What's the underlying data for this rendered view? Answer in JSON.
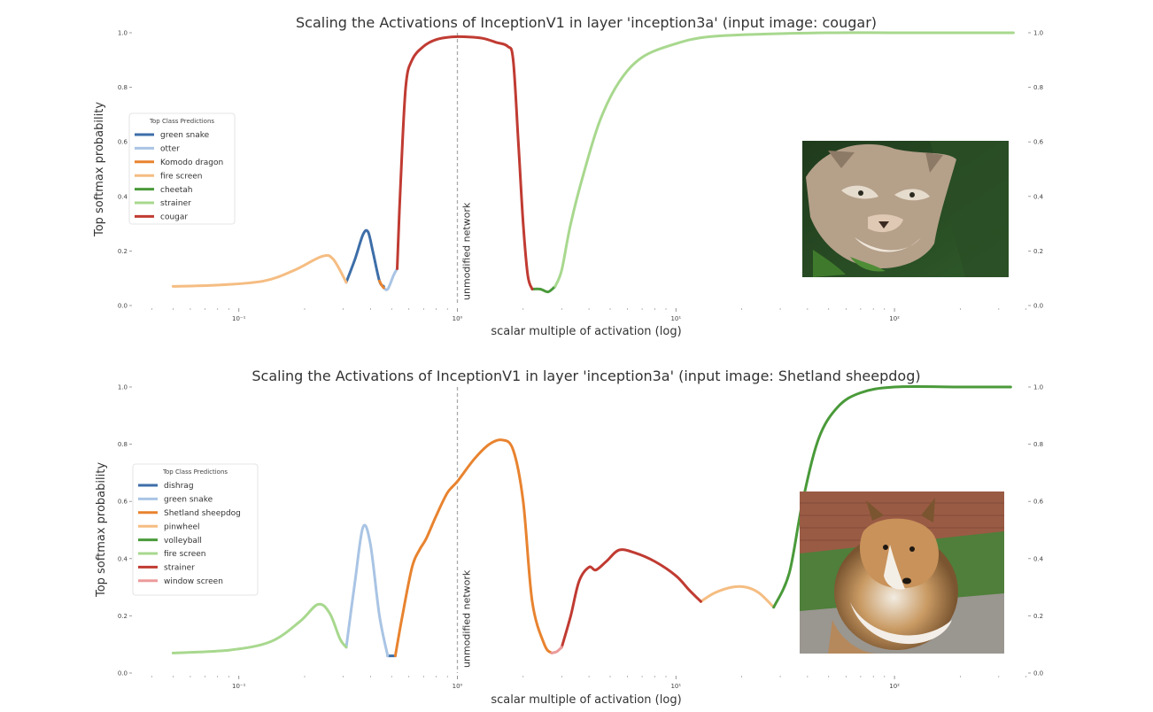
{
  "chart_data": [
    {
      "type": "line",
      "title": "Scaling the Activations of InceptionV1 in layer 'inception3a' (input image: cougar)",
      "xlabel": "scalar multiple of activation (log)",
      "ylabel": "Top softmax probability",
      "xscale": "log",
      "xlim": [
        0.04,
        400
      ],
      "ylim": [
        0,
        1
      ],
      "xticks": [
        0.1,
        1,
        10,
        100
      ],
      "xtick_labels": [
        "10⁻¹",
        "10⁰",
        "10¹",
        "10²"
      ],
      "yticks": [
        0,
        0.2,
        0.4,
        0.6,
        0.8,
        1.0
      ],
      "ytick_labels": [
        "0.0",
        "0.2",
        "0.4",
        "0.6",
        "0.8",
        "1.0"
      ],
      "right_axis_ticks": true,
      "grid": false,
      "reference_line": {
        "x": 1,
        "label": "unmodified network"
      },
      "legend": {
        "title": "Top Class Predictions",
        "position": "center-left"
      },
      "image": {
        "subject": "cougar",
        "position": "right"
      },
      "series": [
        {
          "name": "green snake",
          "color": "#3d6ea8",
          "points": [
            [
              0.31,
              0.085
            ],
            [
              0.34,
              0.17
            ],
            [
              0.37,
              0.26
            ],
            [
              0.39,
              0.27
            ],
            [
              0.41,
              0.2
            ],
            [
              0.44,
              0.09
            ],
            [
              0.46,
              0.07
            ]
          ]
        },
        {
          "name": "otter",
          "color": "#a9c4e4",
          "points": [
            [
              0.46,
              0.065
            ],
            [
              0.48,
              0.06
            ],
            [
              0.51,
              0.11
            ],
            [
              0.53,
              0.135
            ]
          ]
        },
        {
          "name": "Komodo dragon",
          "color": "#e8832f",
          "points": [
            [
              0.44,
              0.09
            ],
            [
              0.45,
              0.075
            ],
            [
              0.46,
              0.065
            ]
          ]
        },
        {
          "name": "fire screen",
          "color": "#f5bd82",
          "points": [
            [
              0.05,
              0.07
            ],
            [
              0.08,
              0.075
            ],
            [
              0.13,
              0.09
            ],
            [
              0.18,
              0.13
            ],
            [
              0.24,
              0.18
            ],
            [
              0.27,
              0.17
            ],
            [
              0.31,
              0.085
            ]
          ]
        },
        {
          "name": "cheetah",
          "color": "#4a9a3a",
          "points": [
            [
              2.2,
              0.06
            ],
            [
              2.4,
              0.06
            ],
            [
              2.6,
              0.05
            ],
            [
              2.8,
              0.07
            ]
          ]
        },
        {
          "name": "strainer",
          "color": "#a8d88e",
          "points": [
            [
              2.8,
              0.07
            ],
            [
              3.0,
              0.13
            ],
            [
              3.3,
              0.3
            ],
            [
              3.8,
              0.49
            ],
            [
              4.5,
              0.68
            ],
            [
              5.5,
              0.82
            ],
            [
              7.0,
              0.91
            ],
            [
              10,
              0.96
            ],
            [
              14,
              0.985
            ],
            [
              25,
              0.995
            ],
            [
              50,
              1.0
            ],
            [
              100,
              1.0
            ],
            [
              200,
              1.0
            ],
            [
              350,
              1.0
            ]
          ]
        },
        {
          "name": "cougar",
          "color": "#c03b32",
          "points": [
            [
              0.53,
              0.135
            ],
            [
              0.55,
              0.45
            ],
            [
              0.58,
              0.8
            ],
            [
              0.62,
              0.9
            ],
            [
              0.7,
              0.95
            ],
            [
              0.8,
              0.975
            ],
            [
              0.95,
              0.985
            ],
            [
              1.1,
              0.985
            ],
            [
              1.3,
              0.98
            ],
            [
              1.5,
              0.965
            ],
            [
              1.7,
              0.95
            ],
            [
              1.8,
              0.9
            ],
            [
              1.9,
              0.6
            ],
            [
              2.0,
              0.3
            ],
            [
              2.1,
              0.11
            ],
            [
              2.2,
              0.06
            ]
          ]
        }
      ]
    },
    {
      "type": "line",
      "title": "Scaling the Activations of InceptionV1 in layer 'inception3a' (input image: Shetland sheepdog)",
      "xlabel": "scalar multiple of activation (log)",
      "ylabel": "Top softmax probability",
      "xscale": "log",
      "xlim": [
        0.04,
        400
      ],
      "ylim": [
        0,
        1
      ],
      "xticks": [
        0.1,
        1,
        10,
        100
      ],
      "xtick_labels": [
        "10⁻¹",
        "10⁰",
        "10¹",
        "10²"
      ],
      "yticks": [
        0,
        0.2,
        0.4,
        0.6,
        0.8,
        1.0
      ],
      "ytick_labels": [
        "0.0",
        "0.2",
        "0.4",
        "0.6",
        "0.8",
        "1.0"
      ],
      "right_axis_ticks": true,
      "grid": false,
      "reference_line": {
        "x": 1,
        "label": "unmodified network"
      },
      "legend": {
        "title": "Top Class Predictions",
        "position": "center-left"
      },
      "image": {
        "subject": "Shetland sheepdog",
        "position": "right"
      },
      "series": [
        {
          "name": "dishrag",
          "color": "#3d6ea8",
          "points": [
            [
              0.48,
              0.06
            ],
            [
              0.5,
              0.06
            ],
            [
              0.52,
              0.06
            ]
          ]
        },
        {
          "name": "green snake",
          "color": "#a9c4e4",
          "points": [
            [
              0.31,
              0.09
            ],
            [
              0.34,
              0.32
            ],
            [
              0.37,
              0.51
            ],
            [
              0.4,
              0.45
            ],
            [
              0.44,
              0.2
            ],
            [
              0.48,
              0.06
            ]
          ]
        },
        {
          "name": "Shetland sheepdog",
          "color": "#e8832f",
          "points": [
            [
              0.52,
              0.06
            ],
            [
              0.56,
              0.2
            ],
            [
              0.62,
              0.37
            ],
            [
              0.67,
              0.43
            ],
            [
              0.72,
              0.47
            ],
            [
              0.8,
              0.55
            ],
            [
              0.9,
              0.63
            ],
            [
              1.0,
              0.67
            ],
            [
              1.2,
              0.75
            ],
            [
              1.4,
              0.8
            ],
            [
              1.6,
              0.815
            ],
            [
              1.8,
              0.78
            ],
            [
              2.0,
              0.6
            ],
            [
              2.2,
              0.25
            ],
            [
              2.5,
              0.1
            ],
            [
              2.7,
              0.07
            ]
          ]
        },
        {
          "name": "pinwheel",
          "color": "#f5bd82",
          "points": [
            [
              13,
              0.25
            ],
            [
              15,
              0.28
            ],
            [
              18,
              0.3
            ],
            [
              21,
              0.3
            ],
            [
              24,
              0.28
            ],
            [
              28,
              0.23
            ]
          ]
        },
        {
          "name": "volleyball",
          "color": "#4a9a3a",
          "points": [
            [
              28,
              0.23
            ],
            [
              33,
              0.35
            ],
            [
              38,
              0.6
            ],
            [
              45,
              0.82
            ],
            [
              55,
              0.93
            ],
            [
              70,
              0.98
            ],
            [
              100,
              1.0
            ],
            [
              200,
              1.0
            ],
            [
              340,
              1.0
            ]
          ]
        },
        {
          "name": "fire screen",
          "color": "#a8d88e",
          "points": [
            [
              0.05,
              0.07
            ],
            [
              0.09,
              0.08
            ],
            [
              0.14,
              0.11
            ],
            [
              0.19,
              0.18
            ],
            [
              0.23,
              0.24
            ],
            [
              0.26,
              0.21
            ],
            [
              0.29,
              0.12
            ],
            [
              0.31,
              0.09
            ]
          ]
        },
        {
          "name": "strainer",
          "color": "#c03b32",
          "points": [
            [
              3.0,
              0.09
            ],
            [
              3.3,
              0.2
            ],
            [
              3.6,
              0.32
            ],
            [
              4.0,
              0.37
            ],
            [
              4.3,
              0.36
            ],
            [
              4.8,
              0.39
            ],
            [
              5.5,
              0.43
            ],
            [
              6.5,
              0.42
            ],
            [
              8.0,
              0.39
            ],
            [
              10,
              0.34
            ],
            [
              11.5,
              0.29
            ],
            [
              13,
              0.25
            ]
          ]
        },
        {
          "name": "window screen",
          "color": "#ec9a9a",
          "points": [
            [
              2.7,
              0.07
            ],
            [
              2.85,
              0.075
            ],
            [
              3.0,
              0.09
            ]
          ]
        }
      ]
    }
  ]
}
